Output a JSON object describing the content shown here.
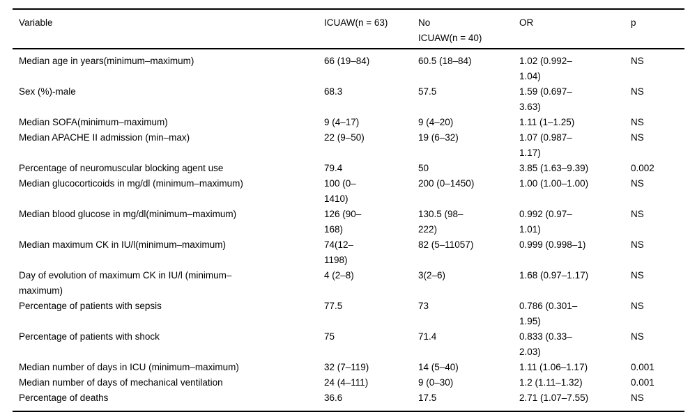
{
  "page": {
    "background_color": "#ffffff",
    "text_color": "#000000",
    "border_color": "#000000"
  },
  "table": {
    "columns": [
      {
        "key": "variable",
        "label": "Variable"
      },
      {
        "key": "icuaw",
        "label": "ICUAW(n = 63)"
      },
      {
        "key": "no_icuaw",
        "label": "No\nICUAW(n = 40)"
      },
      {
        "key": "or",
        "label": "OR"
      },
      {
        "key": "p",
        "label": "p"
      }
    ],
    "rows": [
      {
        "variable": "Median age in years(minimum–maximum)",
        "icuaw": "66 (19–84)",
        "no_icuaw": "60.5 (18–84)",
        "or": "1.02 (0.992–\n1.04)",
        "p": "NS"
      },
      {
        "variable": "Sex (%)-male",
        "icuaw": "68.3",
        "no_icuaw": "57.5",
        "or": "1.59 (0.697–\n3.63)",
        "p": "NS"
      },
      {
        "variable": "Median SOFA(minimum–maximum)",
        "icuaw": "9 (4–17)",
        "no_icuaw": "9 (4–20)",
        "or": "1.11 (1–1.25)",
        "p": "NS"
      },
      {
        "variable": "Median APACHE II admission (min–max)",
        "icuaw": "22 (9–50)",
        "no_icuaw": "19 (6–32)",
        "or": "1.07 (0.987–\n1.17)",
        "p": "NS"
      },
      {
        "variable": "Percentage of neuromuscular blocking agent use",
        "icuaw": "79.4",
        "no_icuaw": "50",
        "or": "3.85 (1.63–9.39)",
        "p": "0.002"
      },
      {
        "variable": "Median glucocorticoids in mg/dl (minimum–maximum)",
        "icuaw": "100 (0–\n1410)",
        "no_icuaw": "200 (0–1450)",
        "or": "1.00 (1.00–1.00)",
        "p": "NS"
      },
      {
        "variable": "Median blood glucose in mg/dl(minimum–maximum)",
        "icuaw": "126 (90–\n168)",
        "no_icuaw": "130.5 (98–\n222)",
        "or": "0.992 (0.97–\n1.01)",
        "p": "NS"
      },
      {
        "variable": "Median maximum CK in IU/l(minimum–maximum)",
        "icuaw": "74(12–\n1198)",
        "no_icuaw": "82 (5–11057)",
        "or": "0.999 (0.998–1)",
        "p": "NS"
      },
      {
        "variable": "Day of evolution of maximum CK in IU/l (minimum–\nmaximum)",
        "icuaw": "4 (2–8)",
        "no_icuaw": "3(2–6)",
        "or": "1.68 (0.97–1.17)",
        "p": "NS"
      },
      {
        "variable": "Percentage of patients with sepsis",
        "icuaw": "77.5",
        "no_icuaw": "73",
        "or": "0.786 (0.301–\n1.95)",
        "p": "NS"
      },
      {
        "variable": "Percentage of patients with shock",
        "icuaw": "75",
        "no_icuaw": "71.4",
        "or": "0.833 (0.33–\n2.03)",
        "p": "NS"
      },
      {
        "variable": "Median number of days in ICU (minimum–maximum)",
        "icuaw": "32 (7–119)",
        "no_icuaw": "14 (5–40)",
        "or": "1.11 (1.06–1.17)",
        "p": "0.001"
      },
      {
        "variable": "Median number of days of mechanical ventilation",
        "icuaw": "24 (4–111)",
        "no_icuaw": "9 (0–30)",
        "or": "1.2 (1.11–1.32)",
        "p": "0.001"
      },
      {
        "variable": "Percentage of deaths",
        "icuaw": "36.6",
        "no_icuaw": "17.5",
        "or": "2.71 (1.07–7.55)",
        "p": "NS"
      }
    ]
  }
}
